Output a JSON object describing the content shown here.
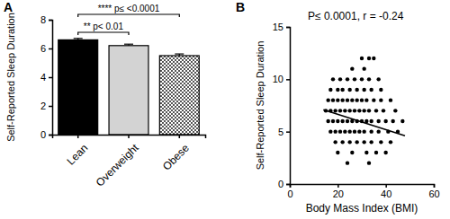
{
  "chart_data": [
    {
      "type": "bar",
      "title": "A",
      "categories": [
        "Lean",
        "Overweight",
        "Obese"
      ],
      "values": [
        6.6,
        6.2,
        5.5
      ],
      "errors": [
        0.1,
        0.1,
        0.12
      ],
      "colors": [
        "#000000",
        "#d3d3d3",
        "#555555"
      ],
      "y_label": "Self-Reported Sleep Duration",
      "ylim": [
        0,
        8
      ],
      "yticks": [
        0,
        2,
        4,
        6,
        8
      ],
      "grid": false,
      "annotations": [
        {
          "text": "**** p≤ <0.0001",
          "between": [
            "Lean",
            "Obese"
          ]
        },
        {
          "text": "** p< 0.01",
          "between": [
            "Lean",
            "Overweight"
          ]
        }
      ]
    },
    {
      "type": "scatter",
      "title": "B",
      "x_label": "Body Mass  Index (BMI)",
      "y_label": "Self-Reported Sleep Duration",
      "xlim": [
        0,
        60
      ],
      "xticks": [
        0,
        20,
        40,
        60
      ],
      "ylim": [
        0,
        15
      ],
      "yticks": [
        0,
        5,
        10,
        15
      ],
      "grid": false,
      "annotations": [
        {
          "text": "P≤ 0.0001, r = -0.24"
        }
      ],
      "series": [
        {
          "type": "scatter",
          "color": "#000000",
          "marker": "circle",
          "x": [
            30,
            33,
            35,
            26,
            31,
            18,
            21,
            24,
            27,
            30,
            33,
            37,
            17,
            20,
            22,
            25,
            28,
            31,
            34,
            38,
            16,
            18,
            20,
            22,
            24,
            26,
            28,
            30,
            32,
            35,
            38,
            42,
            15,
            17,
            19,
            21,
            23,
            25,
            27,
            29,
            31,
            33,
            36,
            39,
            44,
            16,
            18,
            20,
            22,
            24,
            26,
            28,
            30,
            32,
            34,
            37,
            40,
            43,
            47,
            17,
            19,
            21,
            23,
            25,
            27,
            29,
            31,
            34,
            37,
            41,
            45,
            19,
            22,
            25,
            28,
            31,
            34,
            38,
            42,
            20,
            26,
            32,
            36,
            40,
            24,
            33
          ],
          "values": [
            12,
            12,
            12,
            11,
            11,
            10,
            10,
            10,
            10,
            10,
            10,
            10,
            9,
            9,
            9,
            9,
            9,
            9,
            9,
            9,
            8,
            8,
            8,
            8,
            8,
            8,
            8,
            8,
            8,
            8,
            8,
            8,
            7,
            7,
            7,
            7,
            7,
            7,
            7,
            7,
            7,
            7,
            7,
            7,
            7,
            6,
            6,
            6,
            6,
            6,
            6,
            6,
            6,
            6,
            6,
            6,
            6,
            6,
            6,
            5,
            5,
            5,
            5,
            5,
            5,
            5,
            5,
            5,
            5,
            5,
            5,
            4,
            4,
            4,
            4,
            4,
            4,
            4,
            4,
            3,
            3,
            3,
            3,
            3,
            2,
            2
          ]
        },
        {
          "type": "line",
          "color": "#000000",
          "line_style": "solid",
          "x": [
            14,
            48
          ],
          "values": [
            7.1,
            4.6
          ]
        }
      ]
    }
  ]
}
